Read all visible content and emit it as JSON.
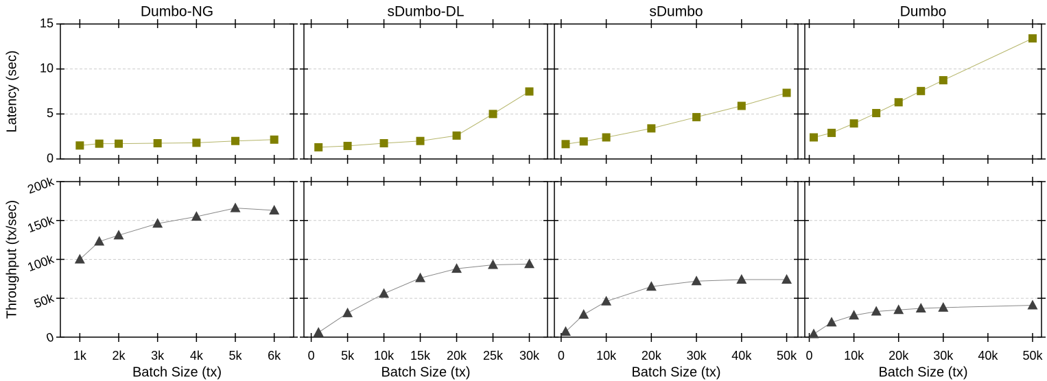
{
  "chart_data": [
    {
      "type": "line",
      "title": "Dumbo-NG",
      "ylabel": "Latency (sec)",
      "marker": "square",
      "color": "#808000",
      "line_color": "#b5b56a",
      "x": [
        1000,
        1500,
        2000,
        3000,
        4000,
        5000,
        6000
      ],
      "values": [
        1.5,
        1.7,
        1.7,
        1.75,
        1.8,
        2.0,
        2.15
      ],
      "xlim": [
        500,
        6500
      ],
      "xticks": [
        1000,
        2000,
        3000,
        4000,
        5000,
        6000
      ],
      "xtick_labels": false,
      "ylim": [
        0,
        15
      ],
      "yticks": [
        0,
        5,
        10,
        15
      ],
      "ytick_labels": true,
      "grid": true
    },
    {
      "type": "line",
      "title": "sDumbo-DL",
      "marker": "square",
      "color": "#808000",
      "line_color": "#b5b56a",
      "x": [
        1000,
        5000,
        10000,
        15000,
        20000,
        25000,
        30000
      ],
      "values": [
        1.3,
        1.45,
        1.75,
        2.0,
        2.6,
        5.0,
        7.5
      ],
      "xlim": [
        -1000,
        32500
      ],
      "xticks": [
        0,
        5000,
        10000,
        15000,
        20000,
        25000,
        30000
      ],
      "xtick_labels": false,
      "ylim": [
        0,
        15
      ],
      "yticks": [
        0,
        5,
        10,
        15
      ],
      "ytick_labels": false,
      "grid": true
    },
    {
      "type": "line",
      "title": "sDumbo",
      "marker": "square",
      "color": "#808000",
      "line_color": "#b5b56a",
      "x": [
        1000,
        5000,
        10000,
        20000,
        30000,
        40000,
        50000
      ],
      "values": [
        1.65,
        1.95,
        2.4,
        3.4,
        4.65,
        5.9,
        7.35
      ],
      "xlim": [
        -1500,
        52500
      ],
      "xticks": [
        0,
        10000,
        20000,
        30000,
        40000,
        50000
      ],
      "xtick_labels": false,
      "ylim": [
        0,
        15
      ],
      "yticks": [
        0,
        5,
        10,
        15
      ],
      "ytick_labels": false,
      "grid": true
    },
    {
      "type": "line",
      "title": "Dumbo",
      "marker": "square",
      "color": "#808000",
      "line_color": "#b5b56a",
      "x": [
        1000,
        5000,
        10000,
        15000,
        20000,
        25000,
        30000,
        50000
      ],
      "values": [
        2.4,
        2.9,
        3.95,
        5.1,
        6.3,
        7.55,
        8.75,
        13.4
      ],
      "xlim": [
        -1000,
        52000
      ],
      "xticks": [
        0,
        10000,
        20000,
        30000,
        40000,
        50000
      ],
      "xtick_labels": false,
      "ylim": [
        0,
        15
      ],
      "yticks": [
        0,
        5,
        10,
        15
      ],
      "ytick_labels": false,
      "grid": true
    },
    {
      "type": "line",
      "ylabel": "Throughput (tx/sec)",
      "xlabel": "Batch Size (tx)",
      "marker": "triangle",
      "color": "#404040",
      "line_color": "#888888",
      "x": [
        1000,
        1500,
        2000,
        3000,
        4000,
        5000,
        6000
      ],
      "values": [
        100000,
        123000,
        131000,
        146000,
        155000,
        166000,
        163000
      ],
      "xlim": [
        500,
        6500
      ],
      "xticks": [
        {
          "value": 1000,
          "label": "1k"
        },
        {
          "value": 2000,
          "label": "2k"
        },
        {
          "value": 3000,
          "label": "3k"
        },
        {
          "value": 4000,
          "label": "4k"
        },
        {
          "value": 5000,
          "label": "5k"
        },
        {
          "value": 6000,
          "label": "6k"
        }
      ],
      "xtick_labels": true,
      "ylim": [
        0,
        200000
      ],
      "yticks": [
        0,
        {
          "value": 50000,
          "label": "50k"
        },
        {
          "value": 100000,
          "label": "100k"
        },
        {
          "value": 150000,
          "label": "150k"
        },
        {
          "value": 200000,
          "label": "200k"
        }
      ],
      "ytick_labels": true,
      "grid": true
    },
    {
      "type": "line",
      "xlabel": "Batch Size (tx)",
      "marker": "triangle",
      "color": "#404040",
      "line_color": "#888888",
      "x": [
        1000,
        5000,
        10000,
        15000,
        20000,
        25000,
        30000
      ],
      "values": [
        6000,
        31000,
        56000,
        76000,
        88000,
        93000,
        94000
      ],
      "xlim": [
        -1000,
        32500
      ],
      "xticks": [
        0,
        {
          "value": 5000,
          "label": "5k"
        },
        {
          "value": 10000,
          "label": "10k"
        },
        {
          "value": 15000,
          "label": "15k"
        },
        {
          "value": 20000,
          "label": "20k"
        },
        {
          "value": 25000,
          "label": "25k"
        },
        {
          "value": 30000,
          "label": "30k"
        }
      ],
      "xtick_labels": true,
      "ylim": [
        0,
        200000
      ],
      "yticks": [
        0,
        50000,
        100000,
        150000,
        200000
      ],
      "ytick_labels": false,
      "grid": true
    },
    {
      "type": "line",
      "xlabel": "Batch Size (tx)",
      "marker": "triangle",
      "color": "#404040",
      "line_color": "#888888",
      "x": [
        1000,
        5000,
        10000,
        20000,
        30000,
        40000,
        50000
      ],
      "values": [
        7000,
        29000,
        46000,
        65000,
        72000,
        74000,
        74000
      ],
      "xlim": [
        -1500,
        52500
      ],
      "xticks": [
        0,
        {
          "value": 10000,
          "label": "10k"
        },
        {
          "value": 20000,
          "label": "20k"
        },
        {
          "value": 30000,
          "label": "30k"
        },
        {
          "value": 40000,
          "label": "40k"
        },
        {
          "value": 50000,
          "label": "50k"
        }
      ],
      "xtick_labels": true,
      "ylim": [
        0,
        200000
      ],
      "yticks": [
        0,
        50000,
        100000,
        150000,
        200000
      ],
      "ytick_labels": false,
      "grid": true
    },
    {
      "type": "line",
      "xlabel": "Batch Size (tx)",
      "marker": "triangle",
      "color": "#404040",
      "line_color": "#888888",
      "x": [
        1000,
        5000,
        10000,
        15000,
        20000,
        25000,
        30000,
        50000
      ],
      "values": [
        4000,
        19000,
        28000,
        33000,
        35000,
        37000,
        38000,
        41000
      ],
      "xlim": [
        -1000,
        52000
      ],
      "xticks": [
        0,
        {
          "value": 10000,
          "label": "10k"
        },
        {
          "value": 20000,
          "label": "20k"
        },
        {
          "value": 30000,
          "label": "30k"
        },
        {
          "value": 40000,
          "label": "40k"
        },
        {
          "value": 50000,
          "label": "50k"
        }
      ],
      "xtick_labels": true,
      "ylim": [
        0,
        200000
      ],
      "yticks": [
        0,
        50000,
        100000,
        150000,
        200000
      ],
      "ytick_labels": false,
      "grid": true
    }
  ]
}
